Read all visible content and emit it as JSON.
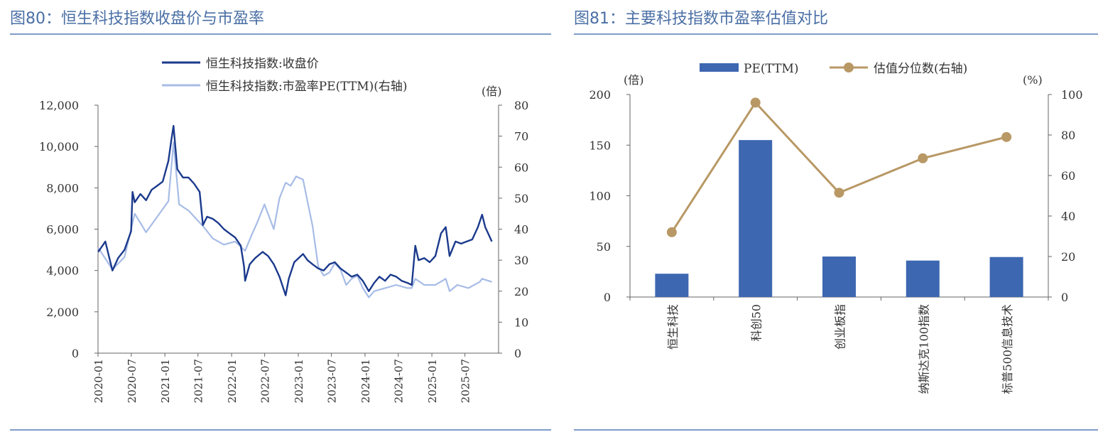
{
  "figures": [
    {
      "title": "图80：恒生科技指数收盘价与市盈率"
    },
    {
      "title": "图81：主要科技指数市盈率估值对比"
    }
  ],
  "chart_data": [
    {
      "type": "line",
      "title": "",
      "legend": [
        "恒生科技指数:收盘价",
        "恒生科技指数:市盈率PE(TTM)(右轴)"
      ],
      "legend_placement": "top-center",
      "y_right_unit": "(倍)",
      "x_ticks": [
        "2020-01",
        "2020-07",
        "2021-01",
        "2021-07",
        "2022-01",
        "2022-07",
        "2023-01",
        "2023-07",
        "2024-01",
        "2024-07",
        "2025-01",
        "2025-07"
      ],
      "y_left_ticks": [
        "0",
        "2,000",
        "4,000",
        "6,000",
        "8,000",
        "10,000",
        "12,000"
      ],
      "y_right_ticks": [
        "0",
        "10",
        "20",
        "30",
        "40",
        "50",
        "60",
        "70",
        "80"
      ],
      "ylim_left": [
        0,
        12000
      ],
      "ylim_right": [
        0,
        80
      ],
      "grid": false,
      "colors": {
        "close": "#1b3a8c",
        "pe": "#a7bce6"
      },
      "series": [
        {
          "name": "恒生科技指数:收盘价",
          "axis": "left",
          "x": [
            "2020-01-02",
            "2020-02-10",
            "2020-03-20",
            "2020-04-20",
            "2020-05-25",
            "2020-06-30",
            "2020-07-08",
            "2020-07-20",
            "2020-08-20",
            "2020-09-20",
            "2020-10-20",
            "2020-11-20",
            "2020-12-20",
            "2021-01-20",
            "2021-02-05",
            "2021-02-17",
            "2021-03-10",
            "2021-04-10",
            "2021-05-10",
            "2021-06-10",
            "2021-07-10",
            "2021-07-28",
            "2021-08-20",
            "2021-09-20",
            "2021-10-20",
            "2021-11-20",
            "2021-12-20",
            "2022-01-20",
            "2022-02-20",
            "2022-03-10",
            "2022-03-16",
            "2022-04-10",
            "2022-05-10",
            "2022-06-20",
            "2022-07-20",
            "2022-08-20",
            "2022-09-20",
            "2022-10-24",
            "2022-11-10",
            "2022-12-10",
            "2023-01-27",
            "2023-02-20",
            "2023-03-20",
            "2023-04-20",
            "2023-05-20",
            "2023-06-20",
            "2023-07-20",
            "2023-08-20",
            "2023-09-20",
            "2023-10-20",
            "2023-11-20",
            "2023-12-20",
            "2024-01-22",
            "2024-02-20",
            "2024-03-20",
            "2024-04-20",
            "2024-05-20",
            "2024-06-20",
            "2024-07-20",
            "2024-08-20",
            "2024-09-13",
            "2024-10-02",
            "2024-10-20",
            "2024-11-20",
            "2024-12-20",
            "2025-01-20",
            "2025-02-20",
            "2025-03-18",
            "2025-04-08",
            "2025-05-10",
            "2025-06-10",
            "2025-07-10",
            "2025-08-10",
            "2025-09-10",
            "2025-10-03",
            "2025-10-20",
            "2025-11-10",
            "2025-11-25"
          ],
          "y": [
            4900,
            5400,
            4000,
            4600,
            5000,
            5900,
            7800,
            7300,
            7700,
            7400,
            7900,
            8100,
            8300,
            9300,
            10300,
            11000,
            8900,
            8500,
            8500,
            8200,
            7800,
            6200,
            6600,
            6500,
            6300,
            6000,
            5800,
            5600,
            5200,
            4200,
            3500,
            4300,
            4600,
            4900,
            4700,
            4300,
            3700,
            2800,
            3600,
            4400,
            4800,
            4500,
            4300,
            4100,
            4000,
            4300,
            4400,
            4100,
            3900,
            3700,
            3800,
            3500,
            3000,
            3400,
            3700,
            3500,
            3800,
            3700,
            3500,
            3400,
            3300,
            5200,
            4500,
            4600,
            4400,
            4700,
            5800,
            6100,
            4700,
            5400,
            5300,
            5400,
            5500,
            6100,
            6700,
            6100,
            5700,
            5400
          ]
        },
        {
          "name": "恒生科技指数:市盈率PE(TTM)(右轴)",
          "axis": "right",
          "x": [
            "2020-01-02",
            "2020-03-20",
            "2020-05-25",
            "2020-07-20",
            "2020-09-20",
            "2020-11-20",
            "2021-01-20",
            "2021-02-17",
            "2021-03-20",
            "2021-05-10",
            "2021-07-28",
            "2021-09-20",
            "2021-11-20",
            "2022-01-20",
            "2022-03-16",
            "2022-04-20",
            "2022-05-20",
            "2022-06-30",
            "2022-08-20",
            "2022-09-20",
            "2022-10-24",
            "2022-11-20",
            "2022-12-20",
            "2023-01-27",
            "2023-02-20",
            "2023-03-20",
            "2023-04-20",
            "2023-05-20",
            "2023-06-20",
            "2023-07-20",
            "2023-08-20",
            "2023-09-20",
            "2023-10-20",
            "2023-11-20",
            "2023-12-20",
            "2024-01-22",
            "2024-02-20",
            "2024-04-20",
            "2024-06-20",
            "2024-08-20",
            "2024-09-13",
            "2024-10-02",
            "2024-11-20",
            "2025-01-20",
            "2025-03-18",
            "2025-04-08",
            "2025-05-20",
            "2025-07-20",
            "2025-09-20",
            "2025-10-03",
            "2025-11-25"
          ],
          "y": [
            34,
            27,
            31,
            45,
            39,
            44,
            49,
            68,
            48,
            46,
            41,
            37,
            35,
            36,
            33,
            38,
            42,
            48,
            40,
            50,
            55,
            54,
            57,
            56,
            49,
            41,
            28,
            25,
            26,
            29,
            27,
            22,
            24,
            25,
            21,
            18,
            20,
            21,
            22,
            21,
            21,
            24,
            22,
            22,
            24,
            20,
            22,
            21,
            23,
            24,
            23
          ]
        }
      ]
    },
    {
      "type": "bar",
      "title": "",
      "legend": [
        "PE(TTM)",
        "估值分位数(右轴)"
      ],
      "legend_placement": "top-center",
      "y_left_unit": "(倍)",
      "y_right_unit": "(%)",
      "categories": [
        "恒生科技",
        "科创50",
        "创业板指",
        "纳斯达克100指数",
        "标普500信息技术"
      ],
      "y_left_ticks": [
        "0",
        "50",
        "100",
        "150",
        "200"
      ],
      "y_right_ticks": [
        "0",
        "20",
        "40",
        "60",
        "80",
        "100"
      ],
      "ylim_left": [
        0,
        200
      ],
      "ylim_right": [
        0,
        100
      ],
      "grid": false,
      "colors": {
        "bar": "#3e67b1",
        "line": "#b89865"
      },
      "series": [
        {
          "name": "PE(TTM)",
          "type": "bar",
          "axis": "left",
          "values": [
            23,
            155,
            40,
            36,
            39.5
          ]
        },
        {
          "name": "估值分位数(右轴)",
          "type": "line",
          "axis": "right",
          "values": [
            32,
            96,
            51.5,
            68.5,
            79
          ]
        }
      ]
    }
  ]
}
